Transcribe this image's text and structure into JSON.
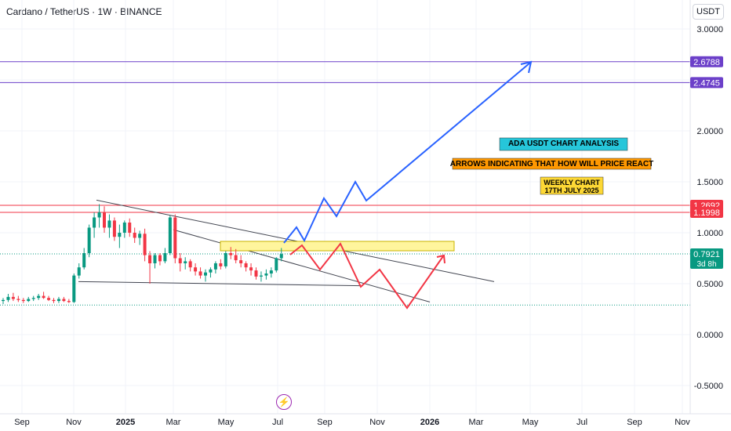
{
  "header": {
    "title": "Cardano / TetherUS · 1W · BINANCE",
    "currency": "USDT"
  },
  "colors": {
    "up": "#089981",
    "down": "#f23645",
    "purple": "#6c40c9",
    "red_level": "#f23645",
    "current": "#089981",
    "blue_arrow": "#2962ff",
    "red_arrow": "#f23645"
  },
  "annotations": {
    "analysis_title": "ADA USDT CHART ANALYSIS",
    "arrows_note": "ARROWS INDICATING THAT HOW WILL PRICE REACT",
    "weekly_line1": "WEEKLY CHART",
    "weekly_line2": "17TH JULY 2025"
  },
  "chart_data": {
    "type": "candlestick",
    "x_ticks": [
      "Sep",
      "Nov",
      "2025",
      "Mar",
      "May",
      "Jul",
      "Sep",
      "Nov",
      "2026",
      "Mar",
      "May",
      "Jul",
      "Sep",
      "Nov"
    ],
    "y_ticks": [
      "3.0000",
      "2.5000",
      "2.0000",
      "1.5000",
      "1.0000",
      "0.5000",
      "0.0000",
      "-0.5000"
    ],
    "price_labels": [
      {
        "value": "2.6788",
        "kind": "purple"
      },
      {
        "value": "2.4745",
        "kind": "purple"
      },
      {
        "value": "1.2692",
        "kind": "red"
      },
      {
        "value": "1.1998",
        "kind": "red"
      },
      {
        "value": "0.7921",
        "kind": "current",
        "sub": "3d 8h"
      }
    ],
    "candles": [
      {
        "o": 0.33,
        "h": 0.36,
        "l": 0.3,
        "c": 0.34
      },
      {
        "o": 0.34,
        "h": 0.4,
        "l": 0.32,
        "c": 0.37
      },
      {
        "o": 0.37,
        "h": 0.41,
        "l": 0.33,
        "c": 0.35
      },
      {
        "o": 0.35,
        "h": 0.38,
        "l": 0.32,
        "c": 0.34
      },
      {
        "o": 0.34,
        "h": 0.36,
        "l": 0.31,
        "c": 0.33
      },
      {
        "o": 0.33,
        "h": 0.37,
        "l": 0.32,
        "c": 0.35
      },
      {
        "o": 0.35,
        "h": 0.38,
        "l": 0.33,
        "c": 0.36
      },
      {
        "o": 0.36,
        "h": 0.4,
        "l": 0.34,
        "c": 0.38
      },
      {
        "o": 0.38,
        "h": 0.42,
        "l": 0.35,
        "c": 0.36
      },
      {
        "o": 0.36,
        "h": 0.38,
        "l": 0.33,
        "c": 0.34
      },
      {
        "o": 0.34,
        "h": 0.36,
        "l": 0.31,
        "c": 0.33
      },
      {
        "o": 0.33,
        "h": 0.37,
        "l": 0.31,
        "c": 0.35
      },
      {
        "o": 0.35,
        "h": 0.37,
        "l": 0.32,
        "c": 0.33
      },
      {
        "o": 0.33,
        "h": 0.35,
        "l": 0.31,
        "c": 0.32
      },
      {
        "o": 0.32,
        "h": 0.6,
        "l": 0.31,
        "c": 0.58
      },
      {
        "o": 0.58,
        "h": 0.7,
        "l": 0.55,
        "c": 0.66
      },
      {
        "o": 0.66,
        "h": 0.85,
        "l": 0.64,
        "c": 0.8
      },
      {
        "o": 0.8,
        "h": 1.08,
        "l": 0.76,
        "c": 1.05
      },
      {
        "o": 1.05,
        "h": 1.2,
        "l": 0.95,
        "c": 1.15
      },
      {
        "o": 1.15,
        "h": 1.28,
        "l": 1.05,
        "c": 1.2
      },
      {
        "o": 1.2,
        "h": 1.26,
        "l": 1.0,
        "c": 1.05
      },
      {
        "o": 1.05,
        "h": 1.18,
        "l": 0.95,
        "c": 1.12
      },
      {
        "o": 1.12,
        "h": 1.15,
        "l": 0.92,
        "c": 0.96
      },
      {
        "o": 0.96,
        "h": 1.08,
        "l": 0.85,
        "c": 1.0
      },
      {
        "o": 1.0,
        "h": 1.12,
        "l": 0.95,
        "c": 1.1
      },
      {
        "o": 1.1,
        "h": 1.14,
        "l": 0.96,
        "c": 1.0
      },
      {
        "o": 1.0,
        "h": 1.05,
        "l": 0.9,
        "c": 0.95
      },
      {
        "o": 0.95,
        "h": 1.02,
        "l": 0.88,
        "c": 0.99
      },
      {
        "o": 0.99,
        "h": 1.04,
        "l": 0.72,
        "c": 0.78
      },
      {
        "o": 0.78,
        "h": 0.82,
        "l": 0.5,
        "c": 0.7
      },
      {
        "o": 0.7,
        "h": 0.8,
        "l": 0.65,
        "c": 0.78
      },
      {
        "o": 0.78,
        "h": 0.8,
        "l": 0.68,
        "c": 0.72
      },
      {
        "o": 0.72,
        "h": 0.85,
        "l": 0.7,
        "c": 0.8
      },
      {
        "o": 0.8,
        "h": 1.17,
        "l": 0.78,
        "c": 1.15
      },
      {
        "o": 1.15,
        "h": 1.18,
        "l": 0.7,
        "c": 0.75
      },
      {
        "o": 0.75,
        "h": 0.8,
        "l": 0.62,
        "c": 0.7
      },
      {
        "o": 0.7,
        "h": 0.76,
        "l": 0.64,
        "c": 0.72
      },
      {
        "o": 0.72,
        "h": 0.74,
        "l": 0.62,
        "c": 0.66
      },
      {
        "o": 0.66,
        "h": 0.7,
        "l": 0.58,
        "c": 0.62
      },
      {
        "o": 0.62,
        "h": 0.66,
        "l": 0.55,
        "c": 0.58
      },
      {
        "o": 0.58,
        "h": 0.64,
        "l": 0.52,
        "c": 0.61
      },
      {
        "o": 0.61,
        "h": 0.66,
        "l": 0.56,
        "c": 0.64
      },
      {
        "o": 0.64,
        "h": 0.72,
        "l": 0.6,
        "c": 0.7
      },
      {
        "o": 0.7,
        "h": 0.74,
        "l": 0.64,
        "c": 0.67
      },
      {
        "o": 0.67,
        "h": 0.82,
        "l": 0.65,
        "c": 0.8
      },
      {
        "o": 0.8,
        "h": 0.86,
        "l": 0.74,
        "c": 0.78
      },
      {
        "o": 0.78,
        "h": 0.84,
        "l": 0.7,
        "c": 0.73
      },
      {
        "o": 0.73,
        "h": 0.78,
        "l": 0.66,
        "c": 0.7
      },
      {
        "o": 0.7,
        "h": 0.72,
        "l": 0.62,
        "c": 0.66
      },
      {
        "o": 0.66,
        "h": 0.7,
        "l": 0.58,
        "c": 0.63
      },
      {
        "o": 0.63,
        "h": 0.66,
        "l": 0.54,
        "c": 0.57
      },
      {
        "o": 0.57,
        "h": 0.62,
        "l": 0.52,
        "c": 0.58
      },
      {
        "o": 0.58,
        "h": 0.64,
        "l": 0.54,
        "c": 0.6
      },
      {
        "o": 0.6,
        "h": 0.66,
        "l": 0.56,
        "c": 0.63
      },
      {
        "o": 0.63,
        "h": 0.76,
        "l": 0.61,
        "c": 0.75
      },
      {
        "o": 0.75,
        "h": 0.85,
        "l": 0.72,
        "c": 0.79
      }
    ]
  }
}
